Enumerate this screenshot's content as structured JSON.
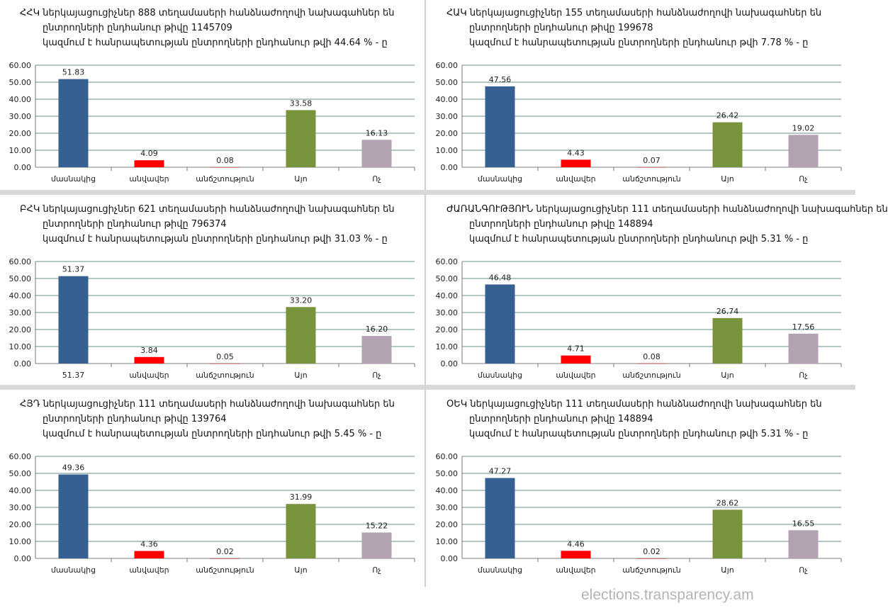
{
  "watermark": "elections.transparency.am",
  "colors": {
    "mandate": "#376092",
    "invalid": "#ff0000",
    "abstain": "#c0504d",
    "yes": "#77933c",
    "no": "#b2a2b2"
  },
  "chart_data": [
    {
      "type": "bar",
      "title_lines": [
        "ՀՀԿ ներկայացուցիչներ  888 տեղամասերի հանձնաժողովի նախագահներ  են",
        "ընտրողների  ընդհանուր  թիվը 1145709",
        "կազմում  է  հանրապետության  ընտրողների  ընդհանուր  թվի 44.64 % - ը"
      ],
      "categories": [
        "մասնակից",
        "անվավեր",
        "անճշտություն",
        "Այո",
        "Ոչ"
      ],
      "values": [
        51.83,
        4.09,
        0.08,
        33.58,
        16.13
      ],
      "yticks": [
        "0.00",
        "10.00",
        "20.00",
        "30.00",
        "40.00",
        "50.00",
        "60.00"
      ],
      "ylim": [
        0,
        60
      ],
      "grid": true
    },
    {
      "type": "bar",
      "title_lines": [
        "ՀԱԿ ներկայացուցիչներ  155 տեղամասերի հանձնաժողովի նախագահներ  են",
        "ընտրողների  ընդհանուր  թիվը 199678",
        "կազմում  է  հանրապետության  ընտրողների  ընդհանուր  թվի 7.78 % - ը"
      ],
      "categories": [
        "մասնակից",
        "անվավեր",
        "անճշտություն",
        "Այո",
        "Ոչ"
      ],
      "values": [
        47.56,
        4.43,
        0.07,
        26.42,
        19.02
      ],
      "yticks": [
        "0.00",
        "10.00",
        "20.00",
        "30.00",
        "40.00",
        "50.00",
        "60.00"
      ],
      "ylim": [
        0,
        60
      ],
      "grid": true
    },
    {
      "type": "bar",
      "title_lines": [
        "ԲՀԿ ներկայացուցիչներ  621 տեղամասերի հանձնաժողովի նախագահներ  են",
        "ընտրողների  ընդհանուր  թիվը 796374",
        "կազմում  է  հանրապետության  ընտրողների  ընդհանուր  թվի 31.03 % - ը"
      ],
      "categories": [
        "51.37",
        "անվավեր",
        "անճշտություն",
        "Այո",
        "Ոչ"
      ],
      "values": [
        51.37,
        3.84,
        0.05,
        33.2,
        16.2
      ],
      "yticks": [
        "0.00",
        "10.00",
        "20.00",
        "30.00",
        "40.00",
        "50.00",
        "60.00"
      ],
      "ylim": [
        0,
        60
      ],
      "grid": true
    },
    {
      "type": "bar",
      "title_lines": [
        "ԺԱՌԱՆԳՈՒԹՅՈՒՆ  ներկայացուցիչներ  111 տեղամասերի հանձնաժողովի նախագահներ են",
        "ընտրողների  ընդհանուր  թիվը 148894",
        "կազմում  է  հանրապետության  ընտրողների  ընդհանուր  թվի 5.31 % - ը"
      ],
      "categories": [
        "մասնակից",
        "անվավեր",
        "անճշտություն",
        "Այո",
        "Ոչ"
      ],
      "values": [
        46.48,
        4.71,
        0.08,
        26.74,
        17.56
      ],
      "yticks": [
        "0.00",
        "10.00",
        "20.00",
        "30.00",
        "40.00",
        "50.00",
        "60.00"
      ],
      "ylim": [
        0,
        60
      ],
      "grid": true
    },
    {
      "type": "bar",
      "title_lines": [
        "ՀՅԴ ներկայացուցիչներ  111 տեղամասերի հանձնաժողովի  նախագահներ  են",
        "ընտրողների  ընդհանուր  թիվը 139764",
        "կազմում  է  հանրապետության  ընտրողների  ընդհանուր  թվի 5.45 % - ը"
      ],
      "categories": [
        "մասնակից",
        "անվավեր",
        "անճշտություն",
        "Այո",
        "Ոչ"
      ],
      "values": [
        49.36,
        4.36,
        0.02,
        31.99,
        15.22
      ],
      "yticks": [
        "0.00",
        "10.00",
        "20.00",
        "30.00",
        "40.00",
        "50.00",
        "60.00"
      ],
      "ylim": [
        0,
        60
      ],
      "grid": true
    },
    {
      "type": "bar",
      "title_lines": [
        "ՕԵԿ ներկայացուցիչներ  111 տեղամասերի հանձնաժողովի  նախագահներ  են",
        "ընտրողների  ընդհանուր  թիվը 148894",
        "կազմում  է  հանրապետության  ընտրողների  ընդհանուր  թվի 5.31 % - ը"
      ],
      "categories": [
        "մասնակից",
        "անվավեր",
        "անճշտություն",
        "Այո",
        "Ոչ"
      ],
      "values": [
        47.27,
        4.46,
        0.02,
        28.62,
        16.55
      ],
      "yticks": [
        "0.00",
        "10.00",
        "20.00",
        "30.00",
        "40.00",
        "50.00",
        "60.00"
      ],
      "ylim": [
        0,
        60
      ],
      "grid": true
    }
  ]
}
